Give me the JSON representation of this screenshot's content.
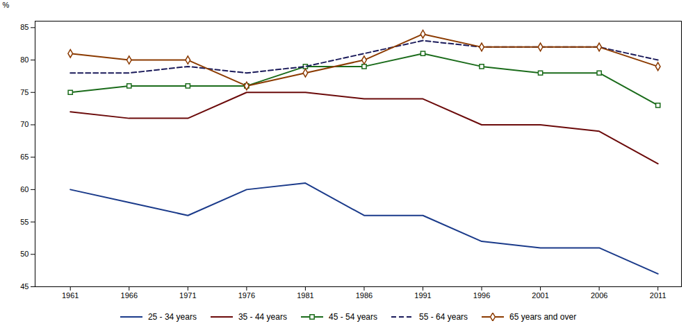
{
  "chart_data": {
    "type": "line",
    "ylabel": "%",
    "x": [
      1961,
      1966,
      1971,
      1976,
      1981,
      1986,
      1991,
      1996,
      2001,
      2006,
      2011
    ],
    "xlim": [
      1958,
      2013
    ],
    "xticks": [
      1961,
      1966,
      1971,
      1976,
      1981,
      1986,
      1991,
      1996,
      2001,
      2006,
      2011
    ],
    "ylim": [
      45,
      86
    ],
    "yticks": [
      45,
      50,
      55,
      60,
      65,
      70,
      75,
      80,
      85
    ],
    "grid": false,
    "legend": "bottom",
    "series": [
      {
        "name": "25 - 34 years",
        "color": "#1A3A8A",
        "line_style": "solid",
        "values": [
          60,
          58,
          56,
          60,
          61,
          56,
          56,
          52,
          51,
          51,
          47
        ]
      },
      {
        "name": "35 - 44 years",
        "color": "#6B0A0A",
        "line_style": "solid",
        "values": [
          72,
          71,
          71,
          75,
          75,
          74,
          74,
          70,
          70,
          69,
          64
        ]
      },
      {
        "name": "45 - 54 years",
        "color": "#1A6B1A",
        "line_style": "solid",
        "marker": "square",
        "values": [
          75,
          76,
          76,
          76,
          79,
          79,
          81,
          79,
          78,
          78,
          73
        ]
      },
      {
        "name": "55 - 64 years",
        "color": "#1A1A5A",
        "line_style": "dashed",
        "values": [
          78,
          78,
          79,
          78,
          79,
          81,
          83,
          82,
          82,
          82,
          80
        ]
      },
      {
        "name": "65 years and over",
        "color": "#8B3A00",
        "line_style": "solid",
        "marker": "diamond",
        "values": [
          81,
          80,
          80,
          76,
          78,
          80,
          84,
          82,
          82,
          82,
          79
        ]
      }
    ]
  }
}
